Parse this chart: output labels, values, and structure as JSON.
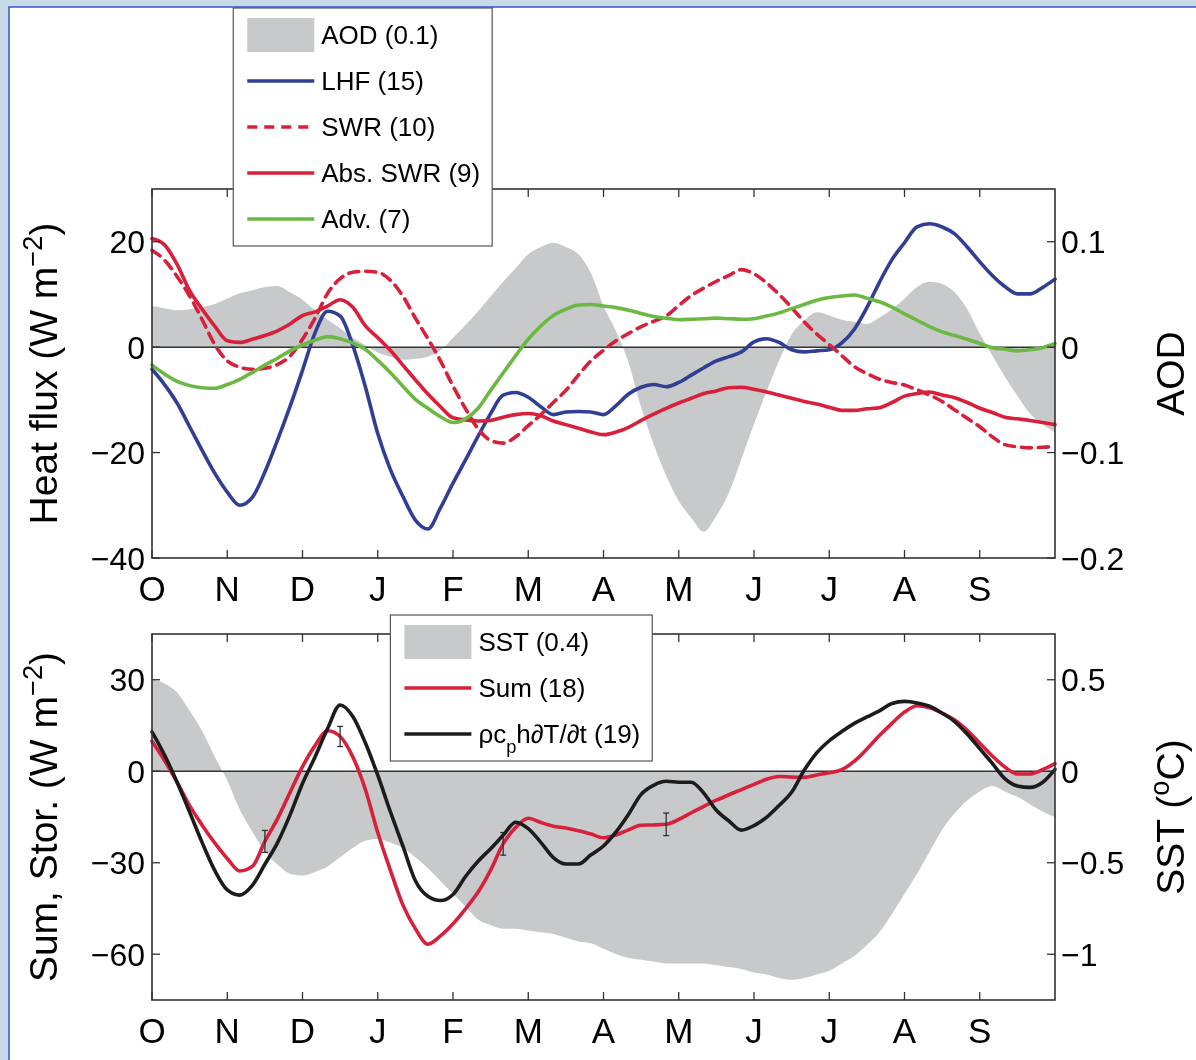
{
  "chart_data": [
    {
      "type": "line",
      "ylabel": "Heat flux (W m$^{−2}$)",
      "y2label": "AOD",
      "legend": "top left",
      "categories": [
        "O",
        null,
        null,
        null,
        null,
        null,
        "N",
        null,
        null,
        null,
        null,
        null,
        "D",
        null,
        null,
        null,
        null,
        null,
        "J",
        null,
        null,
        null,
        null,
        null,
        "F",
        null,
        null,
        null,
        null,
        null,
        "M",
        null,
        null,
        null,
        null,
        null,
        "A",
        null,
        null,
        null,
        null,
        null,
        "M",
        null,
        null,
        null,
        null,
        null,
        "J",
        null,
        null,
        null,
        null,
        null,
        "J",
        null,
        null,
        null,
        null,
        null,
        "A",
        null,
        null,
        null,
        null,
        null,
        "S",
        null,
        null,
        null,
        null,
        null,
        null
      ],
      "ylim": [
        -40,
        30
      ],
      "yticks": [
        -40,
        -20,
        0,
        20
      ],
      "y2lim": [
        -0.2,
        0.15
      ],
      "y2ticks": [
        -0.2,
        -0.1,
        0,
        0.1
      ],
      "ref_lines": [
        {
          "axis": "y",
          "value": 0,
          "color": "#333333"
        }
      ],
      "series": [
        {
          "name": "AOD (0.1)",
          "type": "area",
          "axis": "y2",
          "color": "#c8c9ca",
          "values": [
            0.039,
            0.037,
            0.035,
            0.036,
            0.038,
            0.041,
            0.046,
            0.051,
            0.054,
            0.057,
            0.058,
            0.052,
            0.045,
            0.035,
            0.026,
            0.018,
            0.009,
            0.002,
            -0.005,
            -0.009,
            -0.012,
            -0.011,
            -0.009,
            -0.003,
            0.009,
            0.021,
            0.034,
            0.048,
            0.062,
            0.075,
            0.088,
            0.095,
            0.099,
            0.095,
            0.088,
            0.07,
            0.039,
            0.015,
            -0.015,
            -0.057,
            -0.092,
            -0.122,
            -0.146,
            -0.162,
            -0.175,
            -0.16,
            -0.138,
            -0.106,
            -0.073,
            -0.042,
            -0.013,
            0.012,
            0.025,
            0.033,
            0.03,
            0.026,
            0.024,
            0.022,
            0.028,
            0.036,
            0.046,
            0.057,
            0.062,
            0.06,
            0.052,
            0.036,
            0.013,
            -0.008,
            -0.028,
            -0.046,
            -0.063,
            -0.073,
            -0.081
          ]
        },
        {
          "name": "LHF (15)",
          "color": "#303f93",
          "values": [
            -4.2,
            -7.1,
            -10.6,
            -15.1,
            -19.6,
            -23.9,
            -27.5,
            -30,
            -28.5,
            -23.7,
            -17.7,
            -11.3,
            -4.4,
            2.7,
            6.8,
            5.9,
            0.4,
            -7.4,
            -16.4,
            -23.2,
            -28.3,
            -32.8,
            -34.5,
            -30.5,
            -25.8,
            -21.4,
            -16.9,
            -12.6,
            -9.1,
            -8.6,
            -9.5,
            -11.3,
            -12.8,
            -12.3,
            -12.2,
            -12.3,
            -12.8,
            -11.1,
            -8.9,
            -7.6,
            -7.1,
            -7.5,
            -6.7,
            -5.3,
            -3.9,
            -2.6,
            -1.8,
            -0.9,
            1,
            1.6,
            0.9,
            -0.5,
            -0.9,
            -0.7,
            -0.5,
            0.8,
            3.4,
            7.5,
            12.3,
            16.6,
            19.8,
            22.8,
            23.4,
            22.8,
            21.5,
            19,
            16.2,
            13.6,
            11.5,
            10.1,
            10.1,
            11.3,
            12.9
          ]
        },
        {
          "name": "SWR (10)",
          "color": "#d8203b",
          "line_style": "dashed",
          "values": [
            18.4,
            16.5,
            13.4,
            9.7,
            5.2,
            0.5,
            -2.6,
            -3.8,
            -4.2,
            -4,
            -3.3,
            -1.7,
            1.5,
            5.5,
            10.2,
            13,
            14.2,
            14.4,
            14.2,
            12.7,
            9.7,
            5.5,
            1.6,
            -2.6,
            -7.4,
            -11.7,
            -15.5,
            -17.7,
            -18.2,
            -17,
            -14.9,
            -12.8,
            -10.5,
            -8.2,
            -5.3,
            -2.6,
            -0.6,
            1.2,
            2.6,
            3.9,
            4.9,
            5.9,
            7.9,
            9.8,
            11.2,
            12.5,
            13.6,
            14.7,
            13.9,
            12.2,
            10,
            7.5,
            4.8,
            2.5,
            0.5,
            -1.6,
            -3.7,
            -5,
            -6.1,
            -6.7,
            -7.2,
            -8.1,
            -9.1,
            -10.3,
            -11.9,
            -13.5,
            -15.1,
            -17,
            -18.5,
            -18.9,
            -19.1,
            -19,
            -18.8
          ]
        },
        {
          "name": "Abs. SWR (9)",
          "color": "#d8203b",
          "values": [
            20.6,
            19.4,
            15.7,
            10.7,
            7.2,
            4,
            1.2,
            0.9,
            1.5,
            2.2,
            3.1,
            4.4,
            6,
            6.7,
            7.8,
            9,
            7.6,
            4.1,
            1.8,
            -0.6,
            -3.4,
            -6.2,
            -8.9,
            -11.3,
            -13.4,
            -13.8,
            -14,
            -13.9,
            -13.3,
            -12.8,
            -12.6,
            -13,
            -14,
            -14.7,
            -15.4,
            -16.1,
            -16.6,
            -16.1,
            -15.2,
            -13.9,
            -12.7,
            -11.6,
            -10.6,
            -9.7,
            -8.8,
            -8.3,
            -7.7,
            -7.6,
            -8,
            -8.5,
            -9.1,
            -9.7,
            -10.3,
            -10.8,
            -11.4,
            -12,
            -12,
            -11.7,
            -11.5,
            -10.5,
            -9.3,
            -8.8,
            -8.5,
            -9.1,
            -9.6,
            -10.5,
            -11.6,
            -12.4,
            -13.3,
            -13.6,
            -13.9,
            -14.3,
            -14.7
          ]
        },
        {
          "name": "Adv. (7)",
          "color": "#6bb843",
          "values": [
            -3.4,
            -5.1,
            -6.5,
            -7.3,
            -7.7,
            -7.8,
            -7.1,
            -6.1,
            -4.8,
            -3.4,
            -2.1,
            -0.7,
            0.4,
            1.3,
            2,
            1.6,
            0.8,
            -0.4,
            -2.5,
            -4.8,
            -7.4,
            -9.9,
            -11.6,
            -13.2,
            -14.3,
            -13.6,
            -11.6,
            -8.2,
            -4.9,
            -1.6,
            1.5,
            4,
            6,
            7.2,
            8,
            8.1,
            7.8,
            7.5,
            7,
            6.4,
            5.8,
            5.5,
            5.2,
            5.3,
            5.4,
            5.5,
            5.4,
            5.3,
            5.4,
            5.9,
            6.5,
            7.3,
            8.1,
            8.9,
            9.4,
            9.7,
            9.9,
            9.3,
            8.6,
            7.6,
            6.3,
            5.1,
            3.9,
            2.9,
            2.2,
            1.5,
            0.7,
            -0.1,
            -0.4,
            -0.7,
            -0.5,
            -0.1,
            0.7
          ]
        }
      ]
    },
    {
      "type": "line",
      "ylabel": "Sum, Stor. (W m$^{−2}$)",
      "y2label": "SST ($^{o}$C)",
      "legend": "top",
      "categories": [
        "O",
        null,
        null,
        null,
        null,
        null,
        "N",
        null,
        null,
        null,
        null,
        null,
        "D",
        null,
        null,
        null,
        null,
        null,
        "J",
        null,
        null,
        null,
        null,
        null,
        "F",
        null,
        null,
        null,
        null,
        null,
        "M",
        null,
        null,
        null,
        null,
        null,
        "A",
        null,
        null,
        null,
        null,
        null,
        "M",
        null,
        null,
        null,
        null,
        null,
        "J",
        null,
        null,
        null,
        null,
        null,
        "J",
        null,
        null,
        null,
        null,
        null,
        "A",
        null,
        null,
        null,
        null,
        null,
        "S",
        null,
        null,
        null,
        null,
        null,
        null
      ],
      "ylim": [
        -75,
        45
      ],
      "yticks": [
        -60,
        -30,
        0,
        30
      ],
      "y2lim": [
        -1.25,
        0.75
      ],
      "y2ticks": [
        -1,
        -0.5,
        0,
        0.5
      ],
      "ref_lines": [
        {
          "axis": "y",
          "value": 0,
          "color": "#333333"
        }
      ],
      "series": [
        {
          "name": "SST (0.4)",
          "type": "area",
          "axis": "y2",
          "color": "#c8c9ca",
          "values": [
            0.5,
            0.48,
            0.43,
            0.33,
            0.22,
            0.08,
            -0.05,
            -0.21,
            -0.33,
            -0.44,
            -0.51,
            -0.56,
            -0.57,
            -0.55,
            -0.52,
            -0.47,
            -0.42,
            -0.38,
            -0.37,
            -0.39,
            -0.42,
            -0.47,
            -0.53,
            -0.6,
            -0.67,
            -0.74,
            -0.81,
            -0.84,
            -0.86,
            -0.86,
            -0.87,
            -0.88,
            -0.89,
            -0.91,
            -0.93,
            -0.94,
            -0.97,
            -1,
            -1.02,
            -1.03,
            -1.04,
            -1.05,
            -1.05,
            -1.05,
            -1.05,
            -1.06,
            -1.07,
            -1.08,
            -1.1,
            -1.11,
            -1.13,
            -1.14,
            -1.13,
            -1.11,
            -1.09,
            -1.05,
            -1.01,
            -0.95,
            -0.88,
            -0.78,
            -0.67,
            -0.56,
            -0.44,
            -0.32,
            -0.23,
            -0.16,
            -0.11,
            -0.08,
            -0.11,
            -0.14,
            -0.18,
            -0.22,
            -0.25
          ]
        },
        {
          "name": "Sum (18)",
          "color": "#d8203b",
          "values": [
            9.8,
            3.5,
            -3.6,
            -11.3,
            -17.7,
            -23.5,
            -28.6,
            -32.7,
            -31.2,
            -23,
            -15.6,
            -7,
            1.5,
            8.4,
            13.3,
            11.4,
            4.8,
            -5.8,
            -20.1,
            -32.4,
            -43.8,
            -51.6,
            -56.7,
            -54,
            -50,
            -45.1,
            -39.6,
            -32.4,
            -23.8,
            -18.4,
            -15.4,
            -16.8,
            -18,
            -18.6,
            -19.5,
            -20.6,
            -21.8,
            -20.9,
            -19.2,
            -17.7,
            -17.6,
            -17.4,
            -15.8,
            -13.6,
            -11.5,
            -9.5,
            -7.7,
            -6,
            -4.3,
            -2.6,
            -1.7,
            -1.9,
            -2,
            -1.2,
            -0.5,
            0.5,
            3.3,
            7.3,
            11.7,
            15.7,
            19.4,
            21.5,
            20.8,
            19.1,
            16.8,
            13.4,
            9.2,
            5,
            1.4,
            -0.9,
            -0.9,
            0.5,
            2.5
          ],
          "errors": [
            null,
            null,
            null,
            null,
            null,
            null,
            null,
            null,
            null,
            3.6,
            null,
            null,
            null,
            null,
            null,
            3.3,
            null,
            null,
            null,
            null,
            null,
            null,
            null,
            null,
            null,
            null,
            null,
            null,
            3.7,
            null,
            null,
            null,
            null,
            null,
            null,
            null,
            null,
            null,
            null,
            null,
            null,
            3.7,
            null,
            null,
            null,
            null,
            null,
            null,
            null,
            null,
            null,
            null,
            null,
            null,
            null,
            null,
            null,
            null,
            null,
            null,
            null,
            null,
            null,
            null,
            null,
            null,
            null,
            null,
            null,
            null,
            null,
            null,
            null
          ]
        },
        {
          "name": "ρc$_{p}$h∂T/∂t (19)",
          "color": "#1c1c1c",
          "values": [
            12.9,
            5.3,
            -3.6,
            -13.4,
            -23.4,
            -32.5,
            -38.9,
            -40.6,
            -37.4,
            -30.5,
            -23.5,
            -14.4,
            -4,
            4.7,
            14,
            21.7,
            18,
            9.4,
            -1.3,
            -13.2,
            -24.5,
            -35.9,
            -41,
            -42.4,
            -40.4,
            -34.5,
            -29.5,
            -25.4,
            -21,
            -16.7,
            -18.8,
            -23.3,
            -28.3,
            -30.4,
            -30.4,
            -27.4,
            -24.5,
            -19.9,
            -14.1,
            -7.6,
            -4.6,
            -3.3,
            -3.6,
            -3.6,
            -7.2,
            -12.8,
            -16.3,
            -19.3,
            -17.8,
            -15.1,
            -11.2,
            -6.9,
            0.3,
            6,
            10,
            13,
            15.7,
            17.8,
            19.8,
            22.2,
            22.9,
            22.4,
            21.3,
            19,
            16.3,
            12.2,
            7.4,
            2.6,
            -2.4,
            -4.8,
            -5.3,
            -3.7,
            0.6
          ]
        }
      ]
    }
  ]
}
